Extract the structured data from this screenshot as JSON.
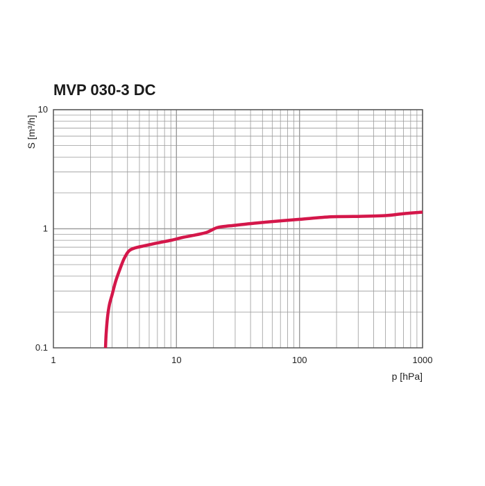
{
  "chart_data": {
    "type": "line",
    "title": "MVP 030-3 DC",
    "xlabel": "p  [hPa]",
    "ylabel": "S [m³/h]",
    "x_scale": "log",
    "y_scale": "log",
    "xlim": [
      1,
      1000
    ],
    "ylim": [
      0.1,
      10
    ],
    "x_ticks": [
      {
        "value": 1,
        "label": "1"
      },
      {
        "value": 10,
        "label": "10"
      },
      {
        "value": 100,
        "label": "100"
      },
      {
        "value": 1000,
        "label": "1000"
      }
    ],
    "y_ticks": [
      {
        "value": 0.1,
        "label": "0.1"
      },
      {
        "value": 1,
        "label": "1"
      },
      {
        "value": 10,
        "label": "10"
      }
    ],
    "grid": true,
    "colors": {
      "curve": "#d4174a",
      "grid": "#9a9a9a",
      "frame": "#555555"
    },
    "series": [
      {
        "x": [
          2.65,
          2.68,
          2.75,
          2.85,
          3.0,
          3.2,
          3.45,
          3.75,
          4.1,
          4.6,
          5.5,
          7.0,
          9.0,
          11.5,
          14.5,
          17.5,
          19.5,
          22.0,
          30,
          50,
          100,
          180,
          300,
          500,
          700,
          1000
        ],
        "y": [
          0.1,
          0.13,
          0.18,
          0.23,
          0.28,
          0.36,
          0.45,
          0.56,
          0.65,
          0.69,
          0.72,
          0.76,
          0.8,
          0.85,
          0.89,
          0.93,
          0.98,
          1.03,
          1.07,
          1.13,
          1.2,
          1.26,
          1.27,
          1.29,
          1.34,
          1.38
        ]
      }
    ]
  }
}
